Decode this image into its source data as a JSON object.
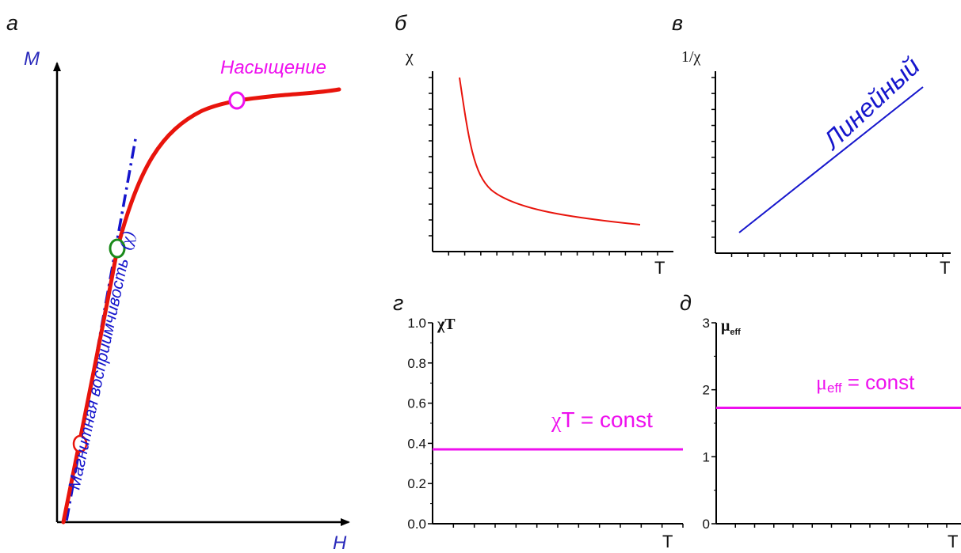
{
  "colors": {
    "red": "#e8140c",
    "blue": "#1515cc",
    "magenta": "#ee10ee",
    "green": "#1a8a1a",
    "axis": "#000000",
    "axis_label_blue": "#2b2bbb"
  },
  "panels": {
    "a": {
      "letter": "а",
      "xlabel": "H",
      "ylabel": "M",
      "label_saturation": "Насыщение",
      "label_susceptibility": "Магнитная восприимчивость",
      "label_chi_symbol": "(χ)"
    },
    "b": {
      "letter": "б",
      "ylabel": "χ",
      "xlabel": "T"
    },
    "v": {
      "letter": "в",
      "ylabel": "1/χ",
      "xlabel": "T",
      "annotation": "Линейный"
    },
    "g": {
      "letter": "г",
      "ylabel": "χT",
      "xlabel": "T",
      "annotation_symbol": "χ",
      "annotation_rest": "T = const",
      "yticks": [
        "0.0",
        "0.2",
        "0.4",
        "0.6",
        "0.8",
        "1.0"
      ]
    },
    "d": {
      "letter": "д",
      "ylabel_main": "μ",
      "ylabel_sub": "eff",
      "xlabel": "T",
      "annotation_symbol": "μ",
      "annotation_sub": "eff",
      "annotation_rest": " = const",
      "yticks": [
        "0",
        "1",
        "2",
        "3"
      ]
    }
  },
  "chart_data": [
    {
      "id": "a",
      "type": "line",
      "xlabel": "H",
      "ylabel": "M",
      "series": [
        {
          "name": "",
          "style": "solid red curve",
          "x": [
            0,
            0.06,
            0.12,
            0.18,
            0.24,
            0.3,
            0.36,
            0.42,
            0.5,
            0.6,
            0.7,
            0.8,
            0.9,
            1.0
          ],
          "y": [
            0,
            0.18,
            0.38,
            0.58,
            0.72,
            0.81,
            0.87,
            0.91,
            0.94,
            0.96,
            0.97,
            0.975,
            0.98,
            0.99
          ]
        },
        {
          "name": "",
          "style": "dash-dot blue tangent",
          "x": [
            0.02,
            0.26
          ],
          "y": [
            0,
            0.85
          ]
        }
      ],
      "annotations": [
        "Насыщение",
        "Магнитная восприимчивость (χ)"
      ]
    },
    {
      "id": "b",
      "type": "line",
      "ylabel": "χ",
      "xlabel": "T",
      "series": [
        {
          "name": "",
          "style": "red curve ~ 1/T",
          "x": [
            0.3,
            0.5,
            0.8,
            1.2,
            1.8,
            2.5,
            3.5,
            5,
            6.5,
            8,
            9.5,
            11
          ],
          "y": [
            0.98,
            0.75,
            0.55,
            0.4,
            0.3,
            0.25,
            0.2,
            0.16,
            0.13,
            0.11,
            0.1,
            0.08
          ]
        }
      ]
    },
    {
      "id": "v",
      "type": "line",
      "ylabel": "1/χ",
      "xlabel": "T",
      "series": [
        {
          "name": "",
          "style": "blue straight line",
          "x": [
            0.1,
            0.95
          ],
          "y": [
            0.1,
            0.95
          ]
        }
      ],
      "annotations": [
        "Линейный"
      ]
    },
    {
      "id": "g",
      "type": "line",
      "ylabel": "χT",
      "xlabel": "T",
      "ylim": [
        0,
        1.0
      ],
      "yticks": [
        0,
        0.2,
        0.4,
        0.6,
        0.8,
        1.0
      ],
      "series": [
        {
          "name": "",
          "style": "magenta horizontal line",
          "x": [
            0,
            1
          ],
          "y": [
            0.37,
            0.37
          ]
        }
      ],
      "annotations": [
        "χT = const"
      ]
    },
    {
      "id": "d",
      "type": "line",
      "ylabel": "μeff",
      "xlabel": "T",
      "ylim": [
        0,
        3
      ],
      "yticks": [
        0,
        1,
        2,
        3
      ],
      "series": [
        {
          "name": "",
          "style": "magenta horizontal line",
          "x": [
            0,
            1
          ],
          "y": [
            1.73,
            1.73
          ]
        }
      ],
      "annotations": [
        "μeff = const"
      ]
    }
  ]
}
